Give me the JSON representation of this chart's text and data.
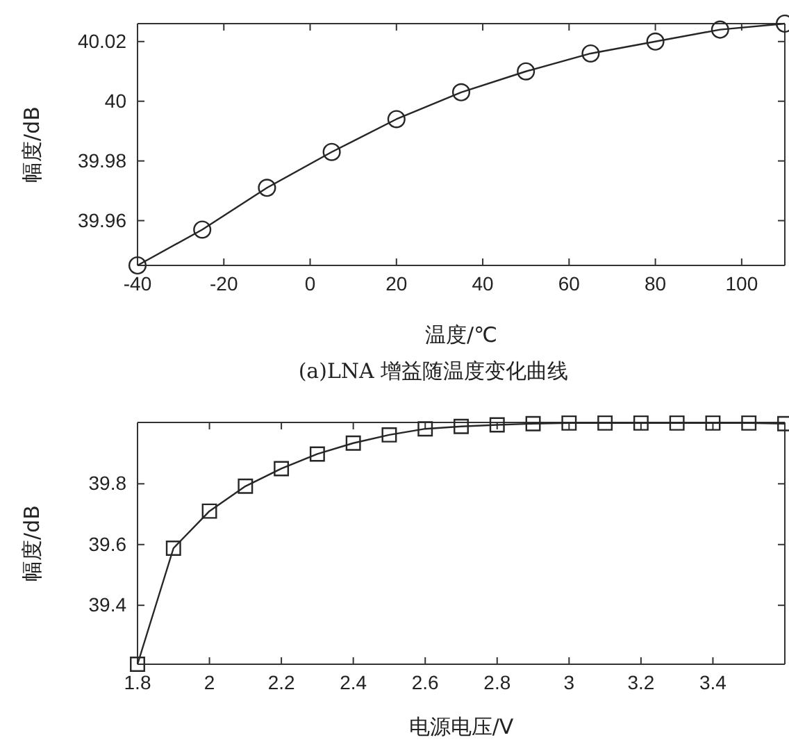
{
  "chart_data": [
    {
      "type": "line",
      "xlabel": "温度/℃",
      "ylabel": "幅度/dB",
      "annotations": [
        "(a)LNA 增益随温度变化曲线"
      ],
      "x": [
        -40,
        -25,
        -10,
        5,
        20,
        35,
        50,
        65,
        80,
        95,
        110
      ],
      "series": [
        {
          "color": "#262626",
          "values": [
            39.945,
            39.957,
            39.971,
            39.983,
            39.994,
            40.003,
            40.01,
            40.016,
            40.02,
            40.024,
            40.026
          ]
        }
      ],
      "xlim": [
        -40,
        110
      ],
      "xticks": [
        -40,
        -20,
        0,
        20,
        40,
        60,
        80,
        100
      ],
      "ylim": [
        39.945,
        40.026
      ],
      "yticks": [
        39.96,
        39.98,
        40,
        40.02
      ],
      "marker": "circle",
      "line_style": "solid",
      "grid": false
    },
    {
      "type": "line",
      "xlabel": "电源电压/V",
      "ylabel": "幅度/dB",
      "x": [
        1.8,
        1.9,
        2.0,
        2.1,
        2.2,
        2.3,
        2.4,
        2.5,
        2.6,
        2.7,
        2.8,
        2.9,
        3.0,
        3.1,
        3.2,
        3.3,
        3.4,
        3.5,
        3.6
      ],
      "series": [
        {
          "color": "#262626",
          "values": [
            39.206,
            39.588,
            39.71,
            39.792,
            39.85,
            39.898,
            39.934,
            39.961,
            39.981,
            39.989,
            39.994,
            39.998,
            40.0,
            40.0,
            40.0,
            40.0,
            40.0,
            40.0,
            39.998
          ]
        }
      ],
      "xlim": [
        1.8,
        3.6
      ],
      "xticks": [
        1.8,
        2,
        2.2,
        2.4,
        2.6,
        2.8,
        3,
        3.2,
        3.4
      ],
      "ylim": [
        39.206,
        40.002
      ],
      "yticks": [
        39.4,
        39.6,
        39.8
      ],
      "marker": "square",
      "line_style": "solid",
      "grid": false
    }
  ]
}
